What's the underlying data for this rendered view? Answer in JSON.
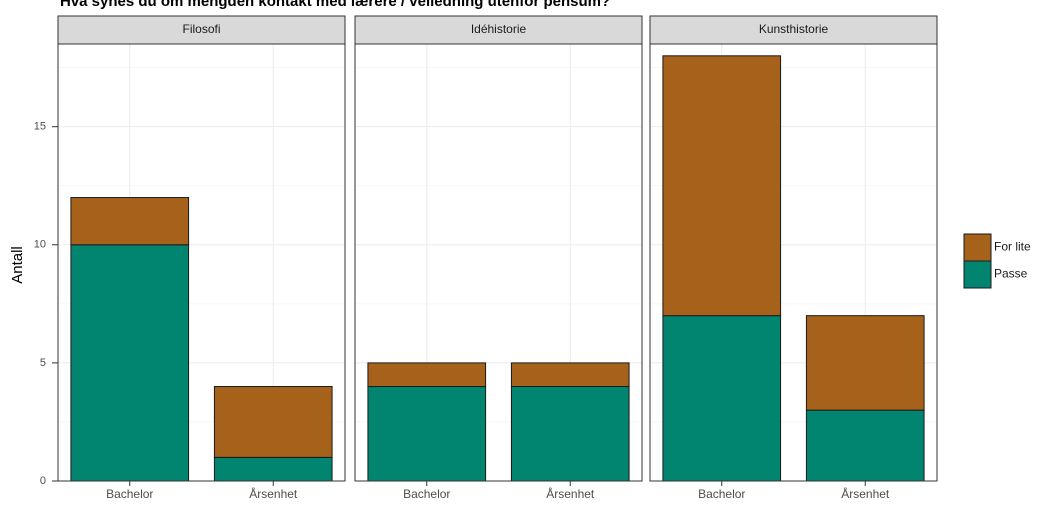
{
  "chart_data": {
    "type": "bar",
    "stacked": true,
    "title": "Hva synes du om mengden kontakt med lærere / veiledning utenfor pensum?",
    "ylabel": "Antall",
    "xlabel": "",
    "ylim": [
      0,
      18.5
    ],
    "yticks": [
      0,
      5,
      10,
      15
    ],
    "grid": true,
    "legend_position": "right",
    "categories": [
      "Bachelor",
      "Årsenhet"
    ],
    "colors": {
      "For lite": "#A6611A",
      "Passe": "#018571"
    },
    "panels": [
      {
        "name": "Filosofi",
        "series": [
          {
            "name": "Passe",
            "values": [
              10,
              1
            ]
          },
          {
            "name": "For lite",
            "values": [
              2,
              3
            ]
          }
        ]
      },
      {
        "name": "Idéhistorie",
        "series": [
          {
            "name": "Passe",
            "values": [
              4,
              4
            ]
          },
          {
            "name": "For lite",
            "values": [
              1,
              1
            ]
          }
        ]
      },
      {
        "name": "Kunsthistorie",
        "series": [
          {
            "name": "Passe",
            "values": [
              7,
              3
            ]
          },
          {
            "name": "For lite",
            "values": [
              11,
              4
            ]
          }
        ]
      }
    ],
    "legend": [
      {
        "label": "For lite",
        "color": "#A6611A"
      },
      {
        "label": "Passe",
        "color": "#018571"
      }
    ]
  }
}
